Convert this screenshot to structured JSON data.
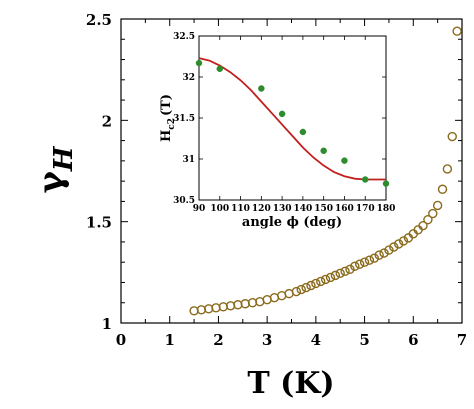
{
  "chart_data": [
    {
      "type": "scatter",
      "title": "",
      "xlabel": "T (K)",
      "ylabel_symbol": "γ",
      "ylabel_subscript": "H",
      "xlim": [
        0,
        7
      ],
      "ylim": [
        1,
        2.5
      ],
      "x_ticks": [
        0,
        1,
        2,
        3,
        4,
        5,
        6,
        7
      ],
      "y_ticks": [
        1,
        1.5,
        2,
        2.5
      ],
      "grid": false,
      "legend": "none",
      "marker": "open-circle",
      "marker_color": "#8a6a1c",
      "series": [
        {
          "x": [
            1.5,
            1.65,
            1.8,
            1.95,
            2.1,
            2.25,
            2.4,
            2.55,
            2.7,
            2.85,
            3.0,
            3.15,
            3.3,
            3.45,
            3.6,
            3.7,
            3.8,
            3.9,
            4.0,
            4.1,
            4.2,
            4.3,
            4.4,
            4.5,
            4.6,
            4.7,
            4.8,
            4.9,
            5.0,
            5.1,
            5.2,
            5.3,
            5.4,
            5.5,
            5.6,
            5.7,
            5.8,
            5.9,
            6.0,
            6.1,
            6.2,
            6.3,
            6.4,
            6.5,
            6.6,
            6.7,
            6.8,
            6.9
          ],
          "y": [
            1.06,
            1.065,
            1.07,
            1.075,
            1.08,
            1.085,
            1.09,
            1.095,
            1.1,
            1.105,
            1.115,
            1.125,
            1.135,
            1.145,
            1.155,
            1.165,
            1.175,
            1.185,
            1.195,
            1.205,
            1.215,
            1.225,
            1.235,
            1.245,
            1.255,
            1.265,
            1.28,
            1.29,
            1.3,
            1.31,
            1.32,
            1.335,
            1.345,
            1.36,
            1.375,
            1.39,
            1.405,
            1.42,
            1.44,
            1.46,
            1.48,
            1.51,
            1.54,
            1.58,
            1.66,
            1.76,
            1.92,
            2.44
          ]
        }
      ]
    },
    {
      "type": "scatter",
      "title": "",
      "xlabel": "angle ϕ (deg)",
      "ylabel_main": "H",
      "ylabel_subscript": "c2",
      "ylabel_unit": "(T)",
      "xlim": [
        90,
        180
      ],
      "ylim": [
        30.5,
        32.5
      ],
      "x_ticks": [
        90,
        100,
        110,
        120,
        130,
        140,
        150,
        160,
        170,
        180
      ],
      "y_ticks": [
        30.5,
        31,
        31.5,
        32,
        32.5
      ],
      "grid": false,
      "legend": "none",
      "point_color": "#2e8b2e",
      "fit_color": "#c0201e",
      "series": [
        {
          "x": [
            90,
            100,
            120,
            130,
            140,
            150,
            160,
            170,
            180
          ],
          "y": [
            32.17,
            32.1,
            31.86,
            31.55,
            31.33,
            31.1,
            30.98,
            30.75,
            30.7
          ]
        }
      ],
      "fit_line": {
        "x": [
          90,
          95,
          100,
          105,
          110,
          115,
          120,
          125,
          130,
          135,
          140,
          145,
          150,
          155,
          160,
          165,
          170,
          175,
          180
        ],
        "y": [
          32.23,
          32.2,
          32.14,
          32.06,
          31.96,
          31.84,
          31.7,
          31.56,
          31.42,
          31.28,
          31.14,
          31.02,
          30.92,
          30.84,
          30.79,
          30.76,
          30.75,
          30.75,
          30.75
        ]
      }
    }
  ]
}
